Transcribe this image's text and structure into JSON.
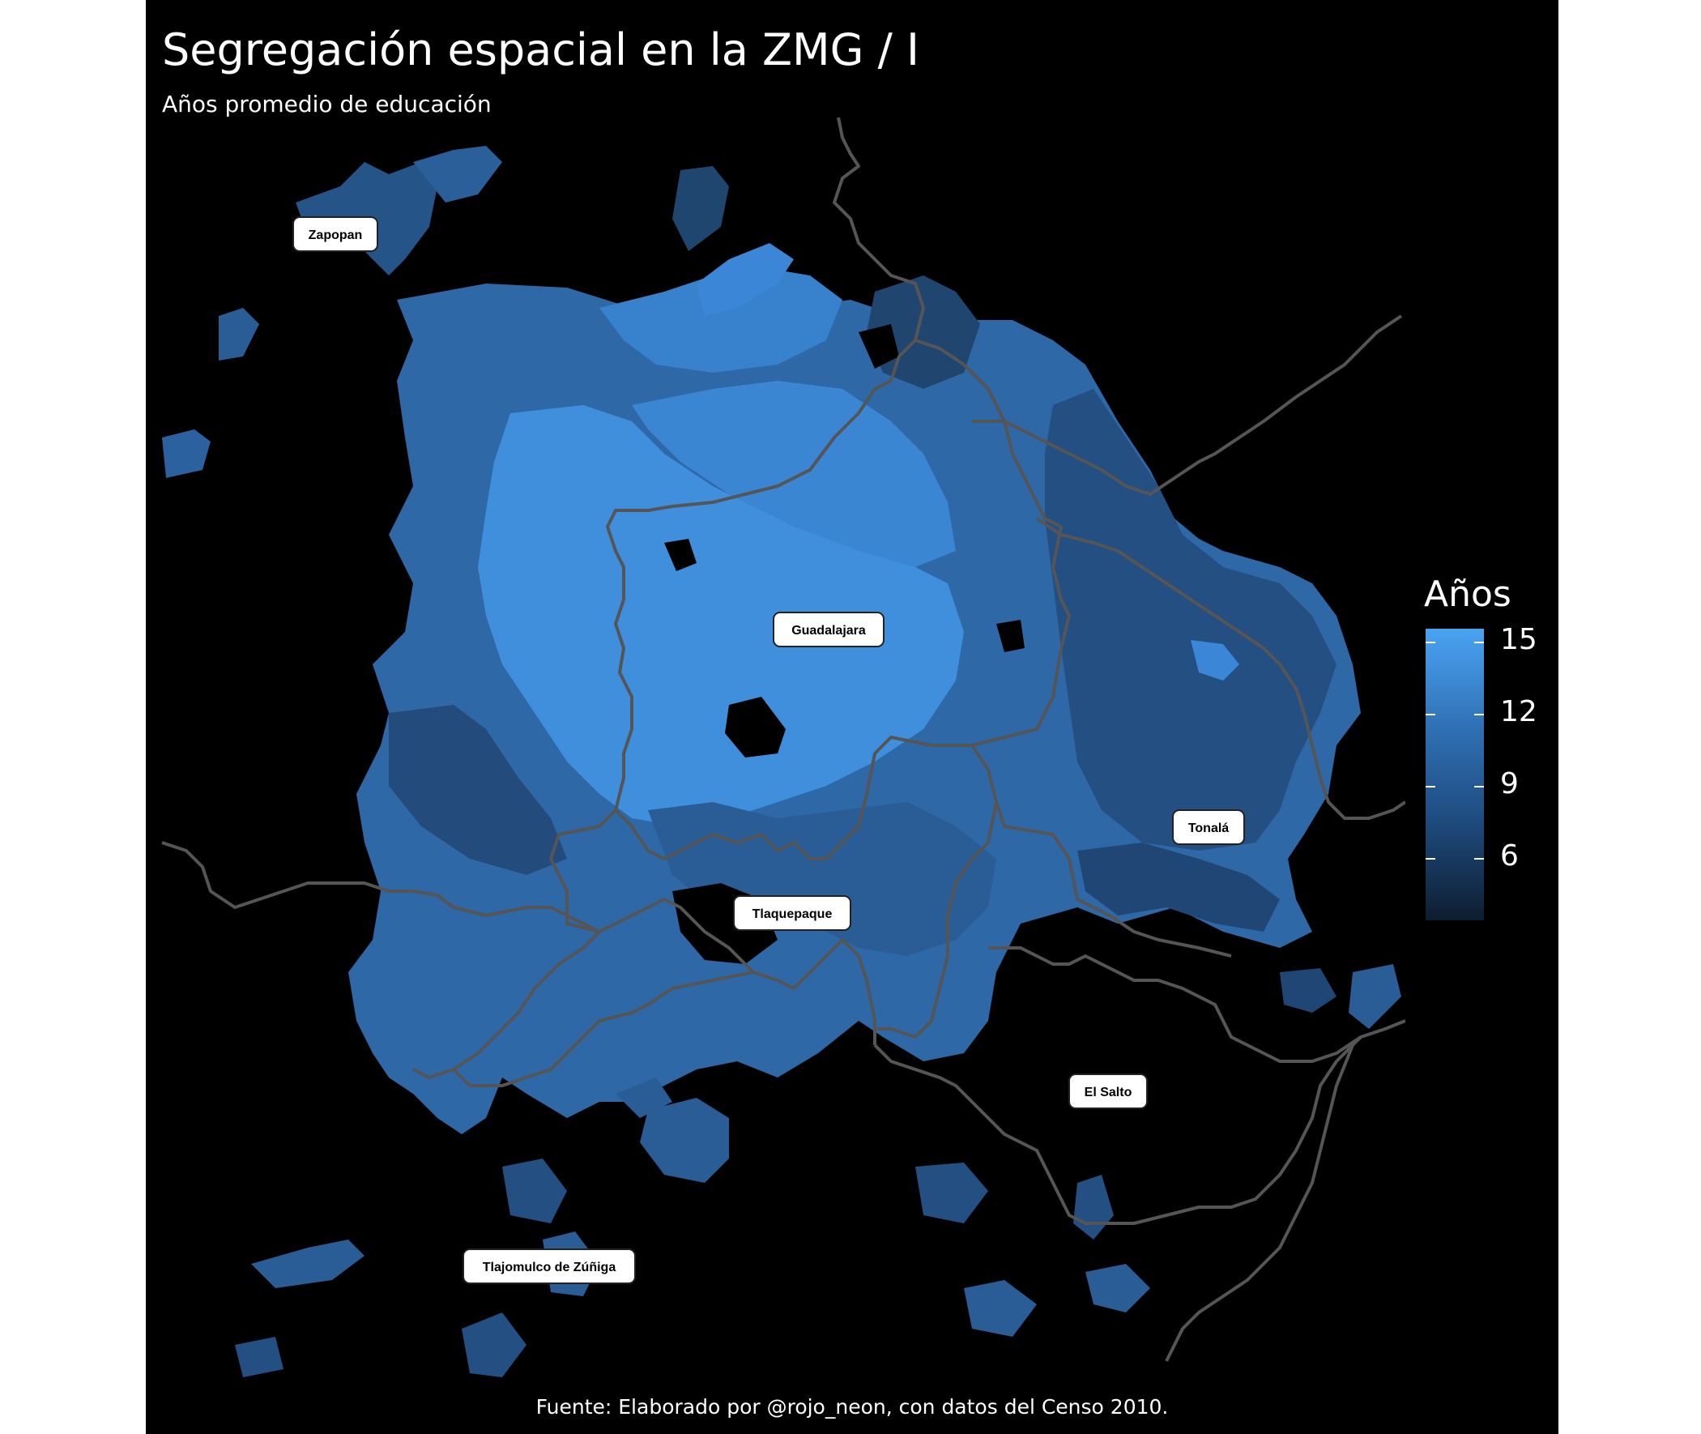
{
  "map": {
    "title": "Segregación espacial en la ZMG / I",
    "subtitle": "Años promedio de educación",
    "caption": "Fuente: Elaborado por @rojo_neon, con datos del Censo 2010.",
    "municipalities": [
      "Zapopan",
      "Guadalajara",
      "Tonalá",
      "Tlaquepaque",
      "El Salto",
      "Tlajomulco de Zúñiga"
    ],
    "legend": {
      "title": "Años",
      "ticks": [
        "15",
        "12",
        "9",
        "6"
      ],
      "range": [
        4,
        15.8
      ],
      "colors": {
        "high": "#4aa3f3",
        "low": "#0d1d31"
      }
    },
    "colors": {
      "background": "#000000",
      "boundary": "#555555",
      "label_box": "#ffffff"
    }
  }
}
